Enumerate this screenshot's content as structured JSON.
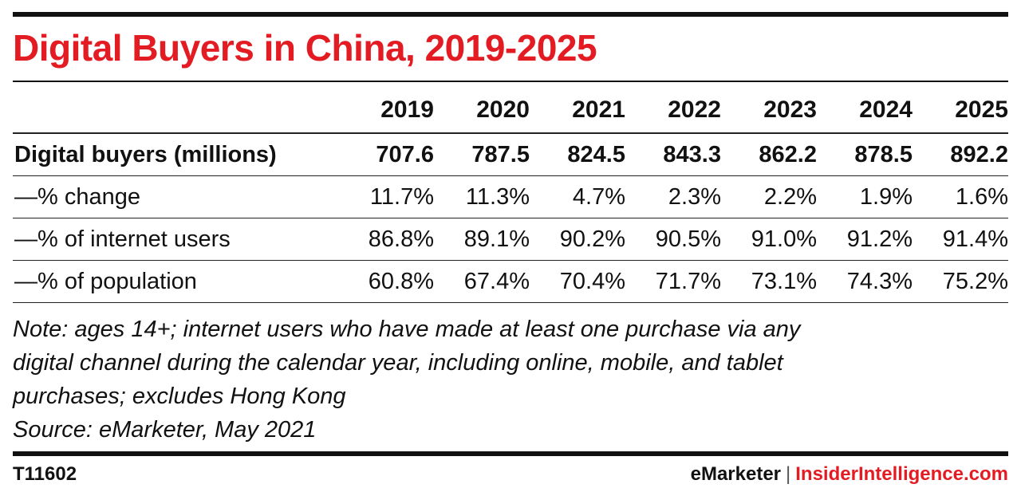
{
  "colors": {
    "title": "#e31c23",
    "text": "#111111",
    "brand_accent": "#e31c23",
    "rule": "#111111"
  },
  "header": {
    "title": "Digital Buyers in China, 2019-2025"
  },
  "chart_data": {
    "type": "table",
    "title": "Digital Buyers in China, 2019-2025",
    "columns": [
      "2019",
      "2020",
      "2021",
      "2022",
      "2023",
      "2024",
      "2025"
    ],
    "rows": [
      {
        "label": "Digital buyers (millions)",
        "values": [
          "707.6",
          "787.5",
          "824.5",
          "843.3",
          "862.2",
          "878.5",
          "892.2"
        ]
      },
      {
        "label": "—% change",
        "values": [
          "11.7%",
          "11.3%",
          "4.7%",
          "2.3%",
          "2.2%",
          "1.9%",
          "1.6%"
        ]
      },
      {
        "label": "—% of internet users",
        "values": [
          "86.8%",
          "89.1%",
          "90.2%",
          "90.5%",
          "91.0%",
          "91.2%",
          "91.4%"
        ]
      },
      {
        "label": "—% of population",
        "values": [
          "60.8%",
          "67.4%",
          "70.4%",
          "71.7%",
          "73.1%",
          "74.3%",
          "75.2%"
        ]
      }
    ]
  },
  "notes": {
    "lines": [
      "Note: ages 14+; internet users who have made at least one purchase via any",
      "digital channel during the calendar year, including online, mobile, and tablet",
      "purchases; excludes Hong Kong",
      "Source: eMarketer, May 2021"
    ]
  },
  "footer": {
    "chart_id": "T11602",
    "brand_primary": "eMarketer",
    "brand_separator": "|",
    "brand_secondary": "InsiderIntelligence.com"
  }
}
